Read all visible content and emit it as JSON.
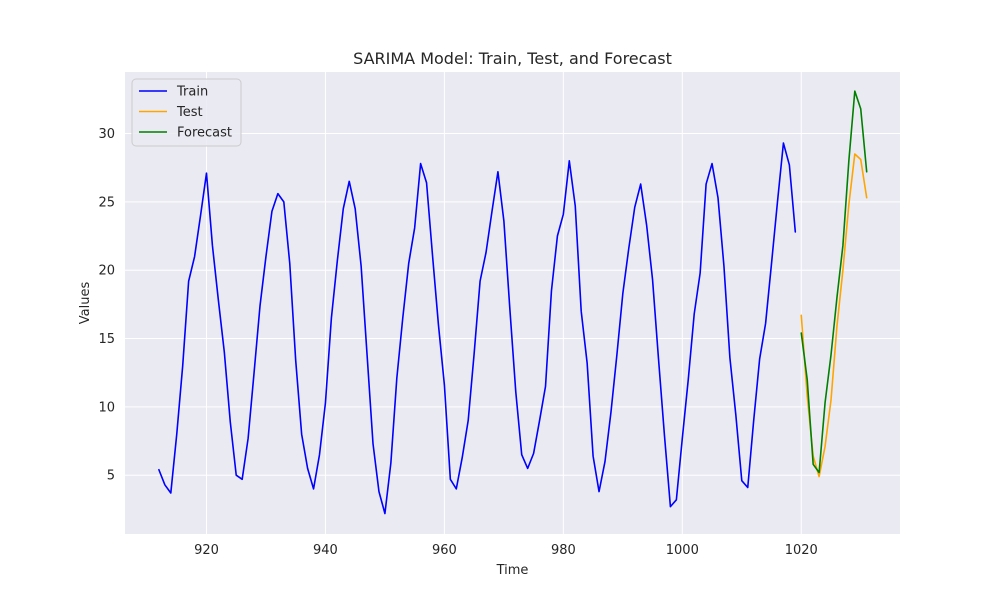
{
  "chart_data": {
    "type": "line",
    "title": "SARIMA Model: Train, Test, and Forecast",
    "xlabel": "Time",
    "ylabel": "Values",
    "xlim": [
      906.3,
      1036.6
    ],
    "ylim": [
      0.7,
      34.5
    ],
    "xticks": [
      920,
      940,
      960,
      980,
      1000,
      1020
    ],
    "yticks": [
      5,
      10,
      15,
      20,
      25,
      30
    ],
    "grid": true,
    "legend_position": "top-left",
    "series": [
      {
        "name": "Train",
        "color": "#0000ff",
        "x_start": 912,
        "values": [
          5.4,
          4.3,
          3.7,
          8.0,
          13.0,
          19.2,
          21.0,
          24.0,
          27.1,
          21.8,
          17.8,
          14.0,
          8.9,
          5.0,
          4.7,
          7.7,
          12.5,
          17.4,
          21.0,
          24.3,
          25.6,
          25.0,
          20.5,
          13.4,
          8.0,
          5.5,
          4.0,
          6.5,
          10.3,
          16.5,
          20.7,
          24.5,
          26.5,
          24.5,
          20.3,
          13.8,
          7.3,
          3.8,
          2.2,
          5.9,
          12.1,
          16.5,
          20.5,
          23.1,
          27.8,
          26.4,
          21.1,
          16.0,
          11.6,
          4.7,
          4.0,
          6.3,
          9.0,
          13.9,
          19.2,
          21.3,
          24.3,
          27.2,
          23.6,
          17.2,
          11.1,
          6.5,
          5.5,
          6.6,
          9.0,
          11.5,
          18.5,
          22.5,
          24.1,
          28.0,
          24.7,
          17.0,
          13.2,
          6.4,
          3.8,
          6.0,
          9.6,
          13.8,
          18.3,
          21.6,
          24.6,
          26.3,
          23.3,
          19.3,
          13.5,
          7.9,
          2.7,
          3.2,
          7.7,
          12.0,
          16.8,
          19.8,
          26.3,
          27.8,
          25.3,
          20.3,
          13.6,
          9.4,
          4.6,
          4.1,
          9.0,
          13.5,
          16.1,
          20.5,
          25.0,
          29.3,
          27.7,
          22.8
        ]
      },
      {
        "name": "Test",
        "color": "#ffa500",
        "x_start": 1020,
        "values": [
          16.7,
          10.8,
          6.4,
          4.9,
          7.1,
          10.5,
          15.9,
          20.0,
          24.8,
          28.5,
          28.1,
          25.3
        ]
      },
      {
        "name": "Forecast",
        "color": "#008000",
        "x_start": 1020,
        "values": [
          15.4,
          12.0,
          5.8,
          5.2,
          10.3,
          13.8,
          18.0,
          21.8,
          28.0,
          33.1,
          31.8,
          27.2
        ]
      }
    ]
  }
}
